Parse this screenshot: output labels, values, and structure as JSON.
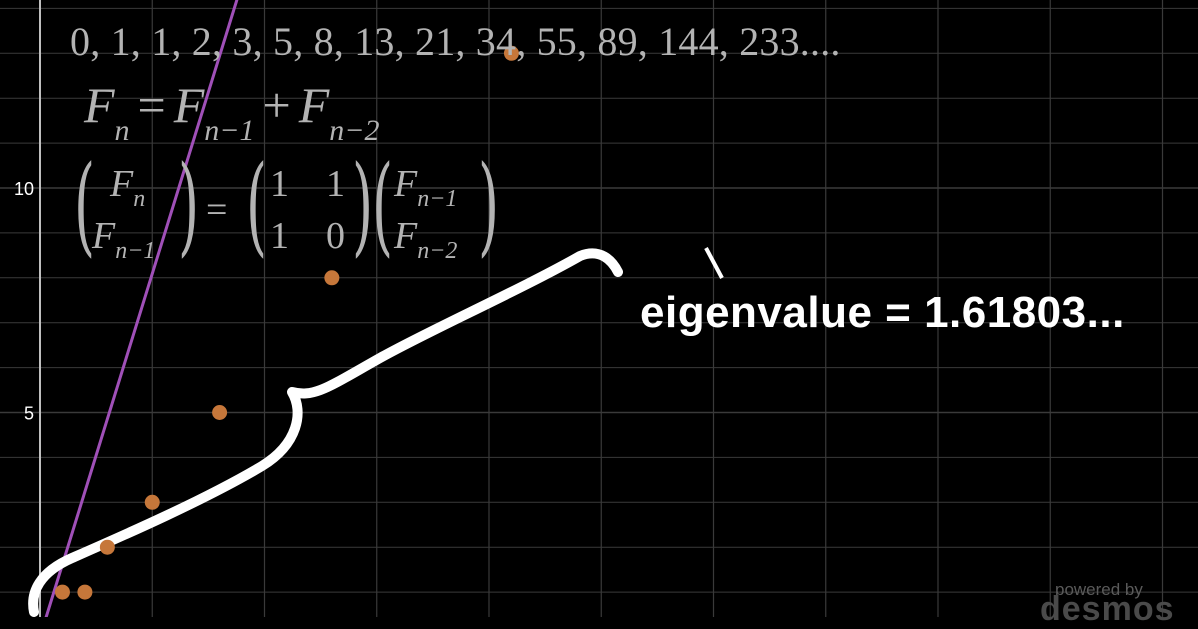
{
  "sequence_text": "0, 1, 1, 2, 3, 5, 8, 13, 21, 34, 55, 89, 144, 233....",
  "recurrence": {
    "F": "F",
    "n": "n",
    "n_minus_1": "n−1",
    "n_minus_2": "n−2",
    "equals": "=",
    "plus": "+"
  },
  "matrix_equation": {
    "lhs_top": "F",
    "lhs_top_sub": "n",
    "lhs_bottom": "F",
    "lhs_bottom_sub": "n−1",
    "equals": "=",
    "m11": "1",
    "m12": "1",
    "m21": "1",
    "m22": "0",
    "rhs_top": "F",
    "rhs_top_sub": "n−1",
    "rhs_bottom": "F",
    "rhs_bottom_sub": "n−2"
  },
  "eigen_label": "eigenvalue = 1.61803...",
  "watermark": {
    "top": "powered by",
    "brand": "desmos"
  },
  "colors": {
    "background": "#000000",
    "grid": "#3a3a3a",
    "axis": "#bfbfbf",
    "line": "#a050b8",
    "point": "#c6773a",
    "brace": "#ffffff"
  },
  "chart_data": {
    "type": "scatter",
    "x": [
      1,
      2,
      3,
      5,
      8,
      13,
      21
    ],
    "y": [
      1,
      1,
      2,
      3,
      5,
      8,
      13
    ],
    "line": {
      "type": "line",
      "slope": 1.61803,
      "intercept": 0
    },
    "y_ticks": [
      "5",
      "10"
    ],
    "grid": true,
    "annotation": "eigenvalue = 1.61803..."
  }
}
